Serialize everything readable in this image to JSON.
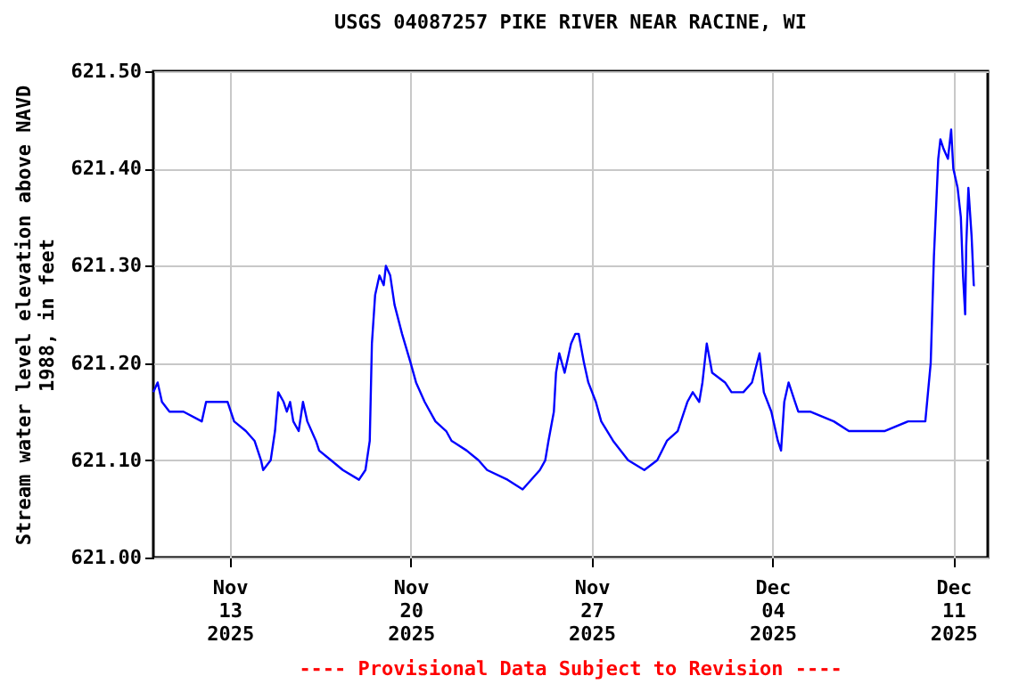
{
  "chart_data": {
    "type": "line",
    "title": "USGS 04087257 PIKE RIVER NEAR RACINE, WI",
    "ylabel": "Stream water level elevation above NAVD 1988, in feet",
    "annotations": [
      "---- Provisional Data Subject to Revision ----"
    ],
    "x": [
      "2025-11-10T01:00",
      "2025-11-10T05:00",
      "2025-11-10T09:00",
      "2025-11-10T16:00",
      "2025-11-11T00:00",
      "2025-11-11T05:00",
      "2025-11-11T22:00",
      "2025-11-12T02:00",
      "2025-11-12T22:00",
      "2025-11-13T04:00",
      "2025-11-13T15:00",
      "2025-11-13T23:00",
      "2025-11-14T05:00",
      "2025-11-14T07:00",
      "2025-11-14T14:00",
      "2025-11-14T18:00",
      "2025-11-14T21:00",
      "2025-11-15T02:00",
      "2025-11-15T05:00",
      "2025-11-15T08:00",
      "2025-11-15T11:00",
      "2025-11-15T16:00",
      "2025-11-15T20:00",
      "2025-11-16T00:00",
      "2025-11-16T08:00",
      "2025-11-16T11:00",
      "2025-11-16T22:00",
      "2025-11-17T09:00",
      "2025-11-18T00:00",
      "2025-11-18T06:00",
      "2025-11-18T10:00",
      "2025-11-18T12:00",
      "2025-11-18T15:00",
      "2025-11-18T19:00",
      "2025-11-18T23:00",
      "2025-11-19T01:00",
      "2025-11-19T05:00",
      "2025-11-19T09:00",
      "2025-11-19T16:00",
      "2025-11-20T00:00",
      "2025-11-20T05:00",
      "2025-11-20T13:00",
      "2025-11-20T23:00",
      "2025-11-21T09:00",
      "2025-11-21T14:00",
      "2025-11-22T04:00",
      "2025-11-22T15:00",
      "2025-11-22T23:00",
      "2025-11-23T18:00",
      "2025-11-24T08:00",
      "2025-11-25T00:00",
      "2025-11-25T05:00",
      "2025-11-25T08:00",
      "2025-11-25T13:00",
      "2025-11-25T15:00",
      "2025-11-25T18:00",
      "2025-11-25T23:00",
      "2025-11-26T05:00",
      "2025-11-26T09:00",
      "2025-11-26T12:00",
      "2025-11-26T17:00",
      "2025-11-26T21:00",
      "2025-11-27T04:00",
      "2025-11-27T09:00",
      "2025-11-27T20:00",
      "2025-11-28T10:00",
      "2025-11-29T01:00",
      "2025-11-29T13:00",
      "2025-11-29T22:00",
      "2025-11-30T08:00",
      "2025-11-30T17:00",
      "2025-11-30T22:00",
      "2025-12-01T04:00",
      "2025-12-01T07:00",
      "2025-12-01T11:00",
      "2025-12-01T16:00",
      "2025-12-02T04:00",
      "2025-12-02T10:00",
      "2025-12-02T21:00",
      "2025-12-03T05:00",
      "2025-12-03T12:00",
      "2025-12-03T16:00",
      "2025-12-03T23:00",
      "2025-12-04T05:00",
      "2025-12-04T08:00",
      "2025-12-04T11:00",
      "2025-12-04T15:00",
      "2025-12-04T21:00",
      "2025-12-05T00:00",
      "2025-12-05T11:00",
      "2025-12-06T09:00",
      "2025-12-06T23:00",
      "2025-12-08T08:00",
      "2025-12-09T06:00",
      "2025-12-09T22:00",
      "2025-12-10T03:00",
      "2025-12-10T06:00",
      "2025-12-10T10:00",
      "2025-12-10T12:00",
      "2025-12-10T15:00",
      "2025-12-10T19:00",
      "2025-12-10T22:00",
      "2025-12-11T00:00",
      "2025-12-11T04:00",
      "2025-12-11T07:00",
      "2025-12-11T09:00",
      "2025-12-11T11:00",
      "2025-12-11T12:00",
      "2025-12-11T14:00",
      "2025-12-11T17:00",
      "2025-12-11T19:00",
      "2025-12-11T20:00"
    ],
    "series": [
      {
        "color": "#0000ff",
        "values": [
          621.17,
          621.18,
          621.16,
          621.15,
          621.15,
          621.15,
          621.14,
          621.16,
          621.16,
          621.14,
          621.13,
          621.12,
          621.1,
          621.09,
          621.1,
          621.13,
          621.17,
          621.16,
          621.15,
          621.16,
          621.14,
          621.13,
          621.16,
          621.14,
          621.12,
          621.11,
          621.1,
          621.09,
          621.08,
          621.09,
          621.12,
          621.22,
          621.27,
          621.29,
          621.28,
          621.3,
          621.29,
          621.26,
          621.23,
          621.2,
          621.18,
          621.16,
          621.14,
          621.13,
          621.12,
          621.11,
          621.1,
          621.09,
          621.08,
          621.07,
          621.09,
          621.1,
          621.12,
          621.15,
          621.19,
          621.21,
          621.19,
          621.22,
          621.23,
          621.23,
          621.2,
          621.18,
          621.16,
          621.14,
          621.12,
          621.1,
          621.09,
          621.1,
          621.12,
          621.13,
          621.16,
          621.17,
          621.16,
          621.18,
          621.22,
          621.19,
          621.18,
          621.17,
          621.17,
          621.18,
          621.21,
          621.17,
          621.15,
          621.12,
          621.11,
          621.16,
          621.18,
          621.16,
          621.15,
          621.15,
          621.14,
          621.13,
          621.13,
          621.14,
          621.14,
          621.2,
          621.31,
          621.41,
          621.43,
          621.42,
          621.41,
          621.44,
          621.4,
          621.38,
          621.35,
          621.29,
          621.25,
          621.32,
          621.38,
          621.33,
          621.28,
          621.28
        ]
      }
    ],
    "xlim": [
      "2025-11-10T01:00",
      "2025-12-12T08:00"
    ],
    "xticks": [
      {
        "value": "2025-11-13T00:00",
        "label": "Nov\n13\n2025"
      },
      {
        "value": "2025-11-20T00:00",
        "label": "Nov\n20\n2025"
      },
      {
        "value": "2025-11-27T00:00",
        "label": "Nov\n27\n2025"
      },
      {
        "value": "2025-12-04T00:00",
        "label": "Dec\n04\n2025"
      },
      {
        "value": "2025-12-11T00:00",
        "label": "Dec\n11\n2025"
      }
    ],
    "ylim": [
      621.0,
      621.5
    ],
    "yticks": [
      {
        "value": 621.0,
        "label": "621.00"
      },
      {
        "value": 621.1,
        "label": "621.10"
      },
      {
        "value": 621.2,
        "label": "621.20"
      },
      {
        "value": 621.3,
        "label": "621.30"
      },
      {
        "value": 621.4,
        "label": "621.40"
      },
      {
        "value": 621.5,
        "label": "621.50"
      }
    ],
    "grid": true
  }
}
